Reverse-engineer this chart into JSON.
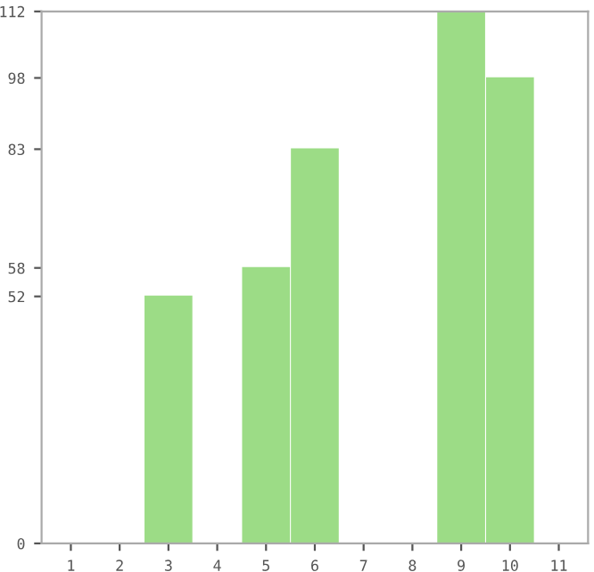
{
  "chart_data": {
    "type": "bar",
    "categories": [
      "1",
      "2",
      "3",
      "4",
      "5",
      "6",
      "7",
      "8",
      "9",
      "10",
      "11"
    ],
    "values": [
      0,
      0,
      52,
      0,
      58,
      83,
      0,
      0,
      112,
      98,
      0
    ],
    "color": "#9cdc86",
    "ylim": [
      0,
      112
    ],
    "yticks": [
      0,
      52,
      58,
      83,
      98,
      112
    ],
    "grid": false
  }
}
